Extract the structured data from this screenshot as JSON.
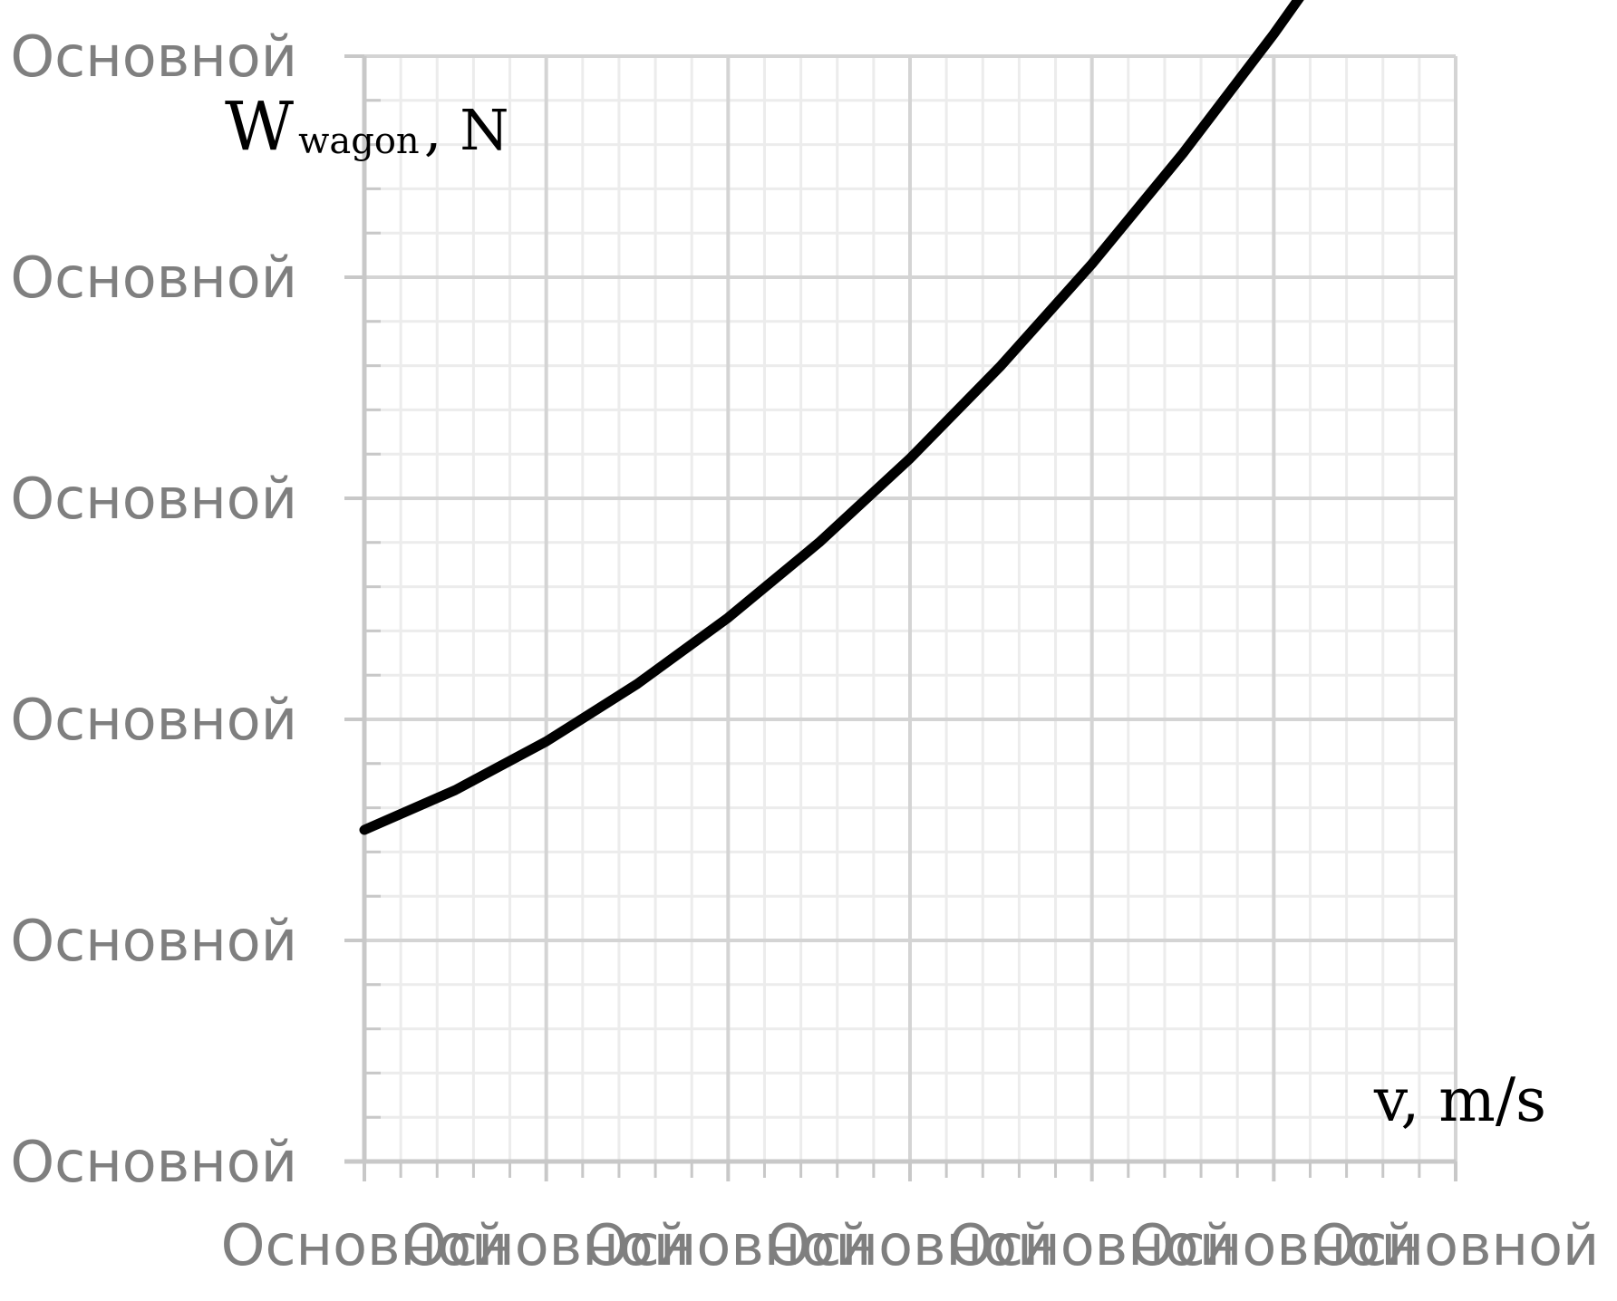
{
  "chart_data": {
    "type": "line",
    "title": "",
    "ylabel_main": "W",
    "ylabel_sub": "wagon",
    "ylabel_unit": ", N",
    "xlabel": "v, m/s",
    "x_tick_labels": [
      "Основной",
      "Основной",
      "Основной",
      "Основной",
      "Основной",
      "Основной",
      "Основной"
    ],
    "y_tick_labels": [
      "Основной",
      "Основной",
      "Основной",
      "Основной",
      "Основной",
      "Основной"
    ],
    "xlim": [
      0,
      6
    ],
    "ylim": [
      0,
      5
    ],
    "x_minor_per_major": 5,
    "y_minor_per_major": 5,
    "grid": true,
    "legend": "none",
    "series": [
      {
        "color": "#000000",
        "x": [
          0,
          0.5,
          1,
          1.5,
          2,
          2.5,
          3,
          3.5,
          4,
          4.5,
          5,
          5.5
        ],
        "y": [
          1.5,
          1.68,
          1.9,
          2.16,
          2.46,
          2.8,
          3.18,
          3.6,
          4.06,
          4.56,
          5.1,
          5.68
        ]
      }
    ]
  }
}
